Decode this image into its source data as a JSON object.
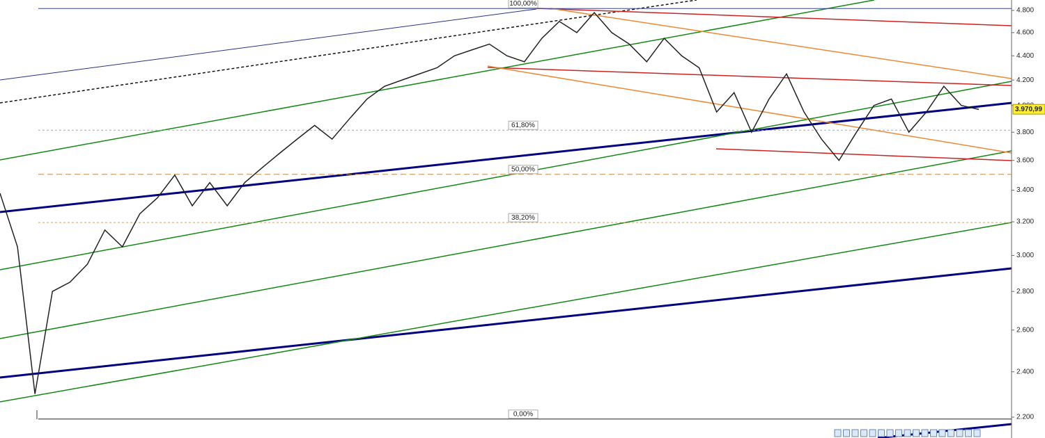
{
  "chart_data": {
    "type": "line",
    "log_scale": true,
    "ylim": [
      2200,
      4800
    ],
    "yticks": [
      {
        "value": 2200,
        "label": "2.200"
      },
      {
        "value": 2400,
        "label": "2.400"
      },
      {
        "value": 2600,
        "label": "2.600"
      },
      {
        "value": 2800,
        "label": "2.800"
      },
      {
        "value": 3000,
        "label": "3.000"
      },
      {
        "value": 3200,
        "label": "3.200"
      },
      {
        "value": 3400,
        "label": "3.400"
      },
      {
        "value": 3600,
        "label": "3.600"
      },
      {
        "value": 3800,
        "label": "3.800"
      },
      {
        "value": 4000,
        "label": "4.000"
      },
      {
        "value": 4200,
        "label": "4.200"
      },
      {
        "value": 4400,
        "label": "4.400"
      },
      {
        "value": 4600,
        "label": "4.600"
      },
      {
        "value": 4800,
        "label": "4.800"
      }
    ],
    "series": [
      {
        "color": "#222222",
        "values": [
          3380,
          3050,
          2300,
          2800,
          2850,
          2950,
          3150,
          3050,
          3250,
          3350,
          3500,
          3300,
          3450,
          3300,
          3450,
          3550,
          3650,
          3750,
          3850,
          3750,
          3900,
          4050,
          4150,
          4200,
          4250,
          4300,
          4400,
          4450,
          4500,
          4400,
          4350,
          4550,
          4700,
          4600,
          4780,
          4600,
          4500,
          4350,
          4550,
          4400,
          4300,
          3950,
          4100,
          3800,
          4050,
          4250,
          3950,
          3750,
          3600,
          3800,
          4000,
          4050,
          3800,
          3950,
          4150,
          4000,
          3970
        ]
      }
    ],
    "last_price": {
      "value": 3970.99,
      "label": "3.970,99"
    },
    "fib": {
      "low": 2192,
      "high": 4818,
      "levels": [
        {
          "value": 100,
          "label": "100,00%",
          "color": "#334499"
        },
        {
          "value": 61.8,
          "label": "61,80%",
          "color": "#99aacc"
        },
        {
          "value": 50,
          "label": "50,00%",
          "color": "#cc8844"
        },
        {
          "value": 38.2,
          "label": "38,20%",
          "color": "#e0a040"
        },
        {
          "value": 0,
          "label": "0,00%",
          "color": "#222222"
        }
      ]
    }
  }
}
